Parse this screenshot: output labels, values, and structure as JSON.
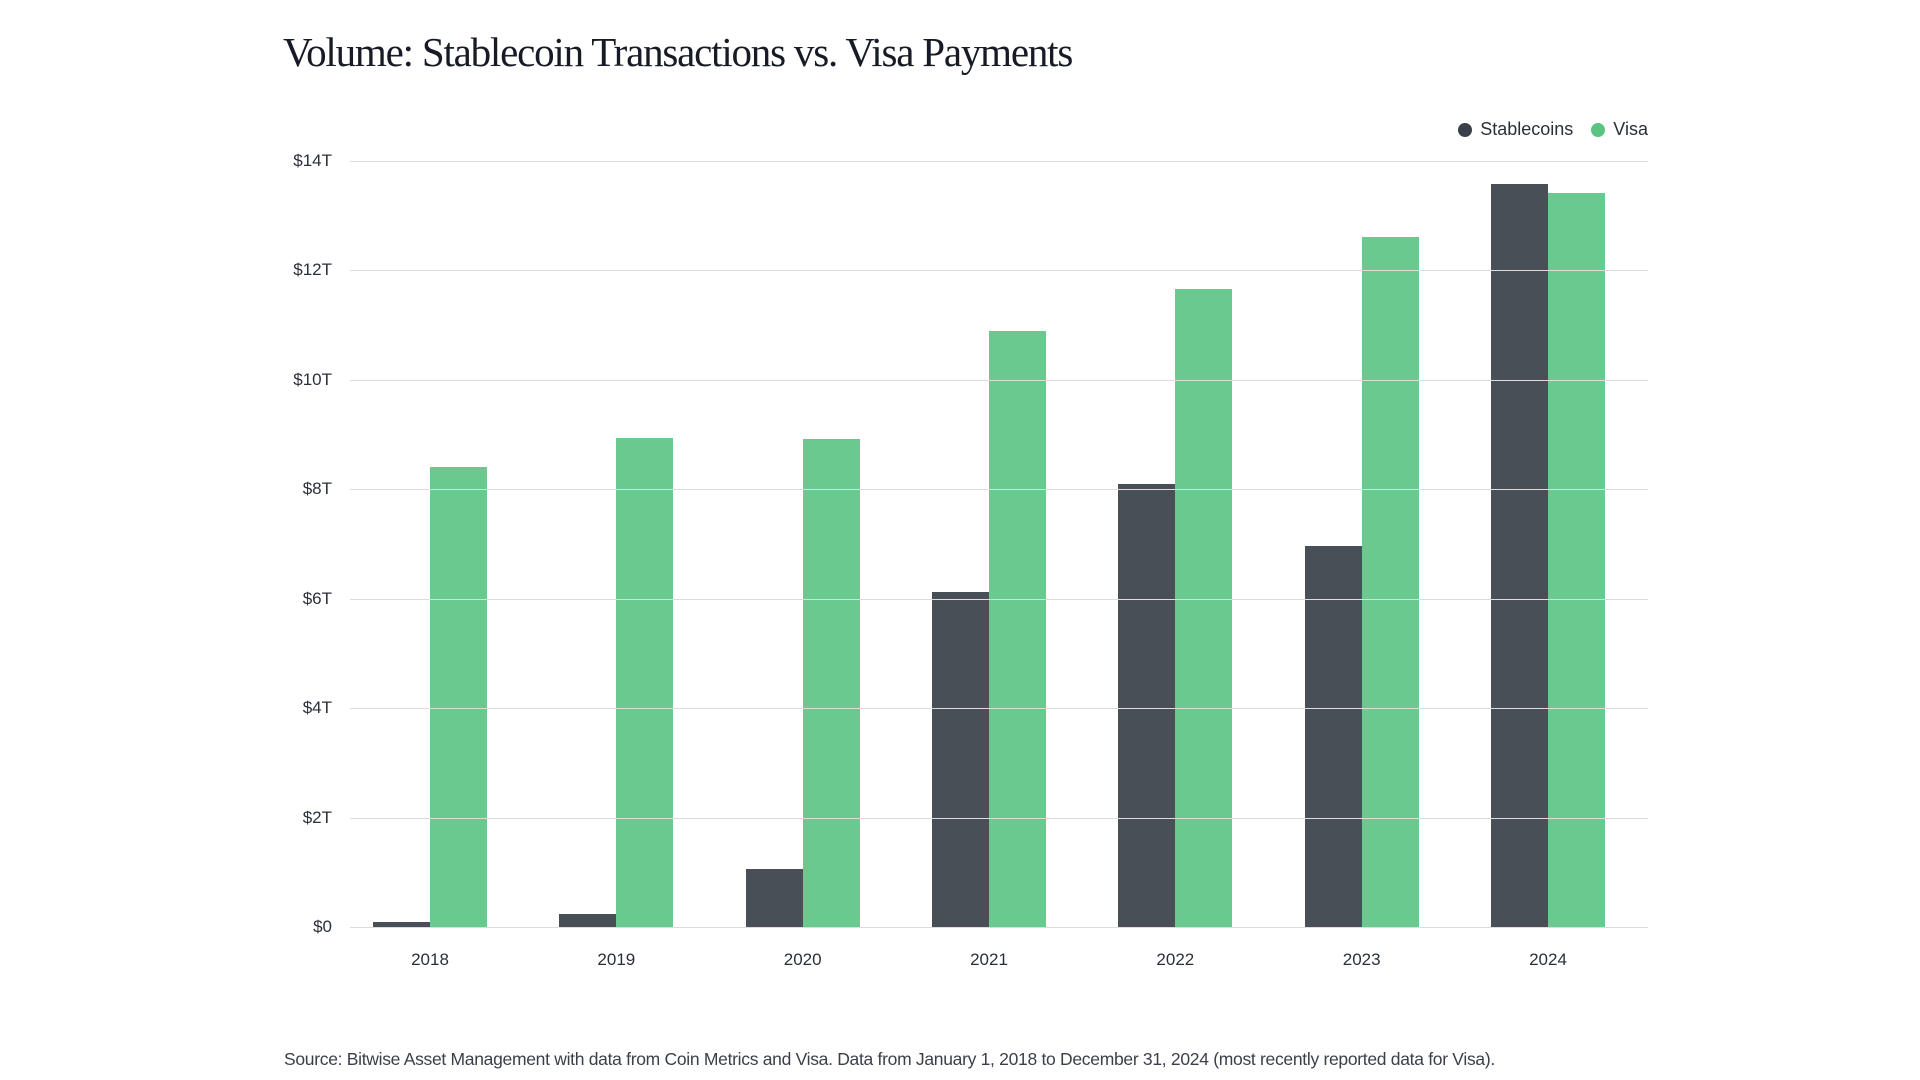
{
  "title": "Volume: Stablecoin Transactions vs. Visa Payments",
  "legend": [
    {
      "label": "Stablecoins",
      "color": "#3a4049"
    },
    {
      "label": "Visa",
      "color": "#5ac382"
    }
  ],
  "source": "Source: Bitwise Asset Management with data from Coin Metrics and Visa. Data from January 1, 2018 to December 31, 2024 (most recently reported data for Visa).",
  "y_ticks": [
    "$0",
    "$2T",
    "$4T",
    "$6T",
    "$8T",
    "$10T",
    "$12T",
    "$14T"
  ],
  "chart_data": {
    "type": "bar",
    "title": "Volume: Stablecoin Transactions vs. Visa Payments",
    "xlabel": "",
    "ylabel": "",
    "categories": [
      "2018",
      "2019",
      "2020",
      "2021",
      "2022",
      "2023",
      "2024"
    ],
    "series": [
      {
        "name": "Stablecoins",
        "color": "#3a4049",
        "values": [
          0.1,
          0.24,
          1.06,
          6.12,
          8.1,
          6.97,
          13.58
        ]
      },
      {
        "name": "Visa",
        "color": "#5ac382",
        "values": [
          8.41,
          8.94,
          8.92,
          10.9,
          11.66,
          12.61,
          13.42
        ]
      }
    ],
    "units": "USD trillions",
    "ylim": [
      0,
      14
    ],
    "y_tick_values": [
      0,
      2,
      4,
      6,
      8,
      10,
      12,
      14
    ],
    "y_tick_labels": [
      "$0",
      "$2T",
      "$4T",
      "$6T",
      "$8T",
      "$10T",
      "$12T",
      "$14T"
    ],
    "grid": "horizontal",
    "legend_position": "top-right",
    "source": "Source: Bitwise Asset Management with data from Coin Metrics and Visa. Data from January 1, 2018 to December 31, 2024 (most recently reported data for Visa)."
  }
}
